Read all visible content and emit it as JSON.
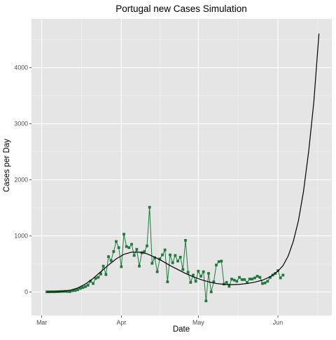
{
  "chart_data": {
    "type": "line",
    "title": "Portugal new Cases Simulation",
    "xlabel": "Date",
    "ylabel": "Cases per Day",
    "x_ticks": [
      {
        "label": "Mar",
        "value": 0
      },
      {
        "label": "Apr",
        "value": 31
      },
      {
        "label": "May",
        "value": 61
      },
      {
        "label": "Jun",
        "value": 92
      }
    ],
    "y_ticks": [
      0,
      1000,
      2000,
      3000,
      4000
    ],
    "xlim": [
      -4,
      113
    ],
    "ylim": [
      -420,
      4870
    ],
    "grid": true,
    "background": "#E5E5E5",
    "series": [
      {
        "kind": "observed",
        "color": "#1E7B3B",
        "marker": "square",
        "points": [
          [
            2,
            2
          ],
          [
            3,
            2
          ],
          [
            4,
            3
          ],
          [
            5,
            3
          ],
          [
            6,
            5
          ],
          [
            7,
            7
          ],
          [
            8,
            9
          ],
          [
            9,
            10
          ],
          [
            10,
            8
          ],
          [
            11,
            6
          ],
          [
            12,
            22
          ],
          [
            13,
            25
          ],
          [
            14,
            38
          ],
          [
            15,
            62
          ],
          [
            16,
            78
          ],
          [
            17,
            95
          ],
          [
            18,
            120
          ],
          [
            19,
            190
          ],
          [
            20,
            150
          ],
          [
            21,
            240
          ],
          [
            22,
            260
          ],
          [
            23,
            320
          ],
          [
            24,
            460
          ],
          [
            25,
            310
          ],
          [
            26,
            630
          ],
          [
            27,
            560
          ],
          [
            28,
            720
          ],
          [
            29,
            900
          ],
          [
            30,
            790
          ],
          [
            31,
            450
          ],
          [
            32,
            1030
          ],
          [
            33,
            810
          ],
          [
            34,
            790
          ],
          [
            35,
            850
          ],
          [
            36,
            650
          ],
          [
            37,
            760
          ],
          [
            38,
            460
          ],
          [
            39,
            700
          ],
          [
            40,
            720
          ],
          [
            41,
            820
          ],
          [
            42,
            1510
          ],
          [
            43,
            510
          ],
          [
            44,
            610
          ],
          [
            45,
            360
          ],
          [
            46,
            590
          ],
          [
            47,
            660
          ],
          [
            48,
            750
          ],
          [
            49,
            180
          ],
          [
            50,
            660
          ],
          [
            51,
            520
          ],
          [
            52,
            650
          ],
          [
            53,
            550
          ],
          [
            54,
            620
          ],
          [
            55,
            400
          ],
          [
            56,
            920
          ],
          [
            57,
            350
          ],
          [
            58,
            170
          ],
          [
            59,
            300
          ],
          [
            60,
            190
          ],
          [
            61,
            370
          ],
          [
            62,
            280
          ],
          [
            63,
            360
          ],
          [
            64,
            -160
          ],
          [
            65,
            330
          ],
          [
            66,
            0
          ],
          [
            67,
            180
          ],
          [
            68,
            480
          ],
          [
            69,
            540
          ],
          [
            70,
            550
          ],
          [
            71,
            140
          ],
          [
            72,
            170
          ],
          [
            73,
            100
          ],
          [
            74,
            230
          ],
          [
            75,
            210
          ],
          [
            76,
            190
          ],
          [
            77,
            260
          ],
          [
            78,
            220
          ],
          [
            79,
            220
          ],
          [
            80,
            170
          ],
          [
            81,
            230
          ],
          [
            82,
            230
          ],
          [
            83,
            250
          ],
          [
            84,
            280
          ],
          [
            85,
            260
          ],
          [
            86,
            150
          ],
          [
            87,
            160
          ],
          [
            88,
            190
          ],
          [
            89,
            260
          ],
          [
            90,
            300
          ],
          [
            91,
            330
          ],
          [
            92,
            380
          ],
          [
            93,
            250
          ],
          [
            94,
            300
          ]
        ]
      },
      {
        "kind": "simulation",
        "color": "#000000",
        "points": [
          [
            2,
            0
          ],
          [
            5,
            3
          ],
          [
            8,
            10
          ],
          [
            11,
            30
          ],
          [
            14,
            70
          ],
          [
            17,
            140
          ],
          [
            20,
            240
          ],
          [
            23,
            360
          ],
          [
            26,
            480
          ],
          [
            29,
            590
          ],
          [
            32,
            670
          ],
          [
            35,
            710
          ],
          [
            38,
            710
          ],
          [
            41,
            680
          ],
          [
            44,
            620
          ],
          [
            47,
            550
          ],
          [
            50,
            470
          ],
          [
            53,
            400
          ],
          [
            56,
            330
          ],
          [
            59,
            270
          ],
          [
            62,
            220
          ],
          [
            65,
            180
          ],
          [
            68,
            150
          ],
          [
            71,
            135
          ],
          [
            74,
            130
          ],
          [
            77,
            135
          ],
          [
            80,
            150
          ],
          [
            83,
            175
          ],
          [
            86,
            210
          ],
          [
            89,
            270
          ],
          [
            92,
            370
          ],
          [
            94,
            470
          ],
          [
            96,
            640
          ],
          [
            98,
            900
          ],
          [
            100,
            1270
          ],
          [
            102,
            1800
          ],
          [
            104,
            2510
          ],
          [
            106,
            3390
          ],
          [
            108,
            4610
          ]
        ]
      }
    ]
  }
}
